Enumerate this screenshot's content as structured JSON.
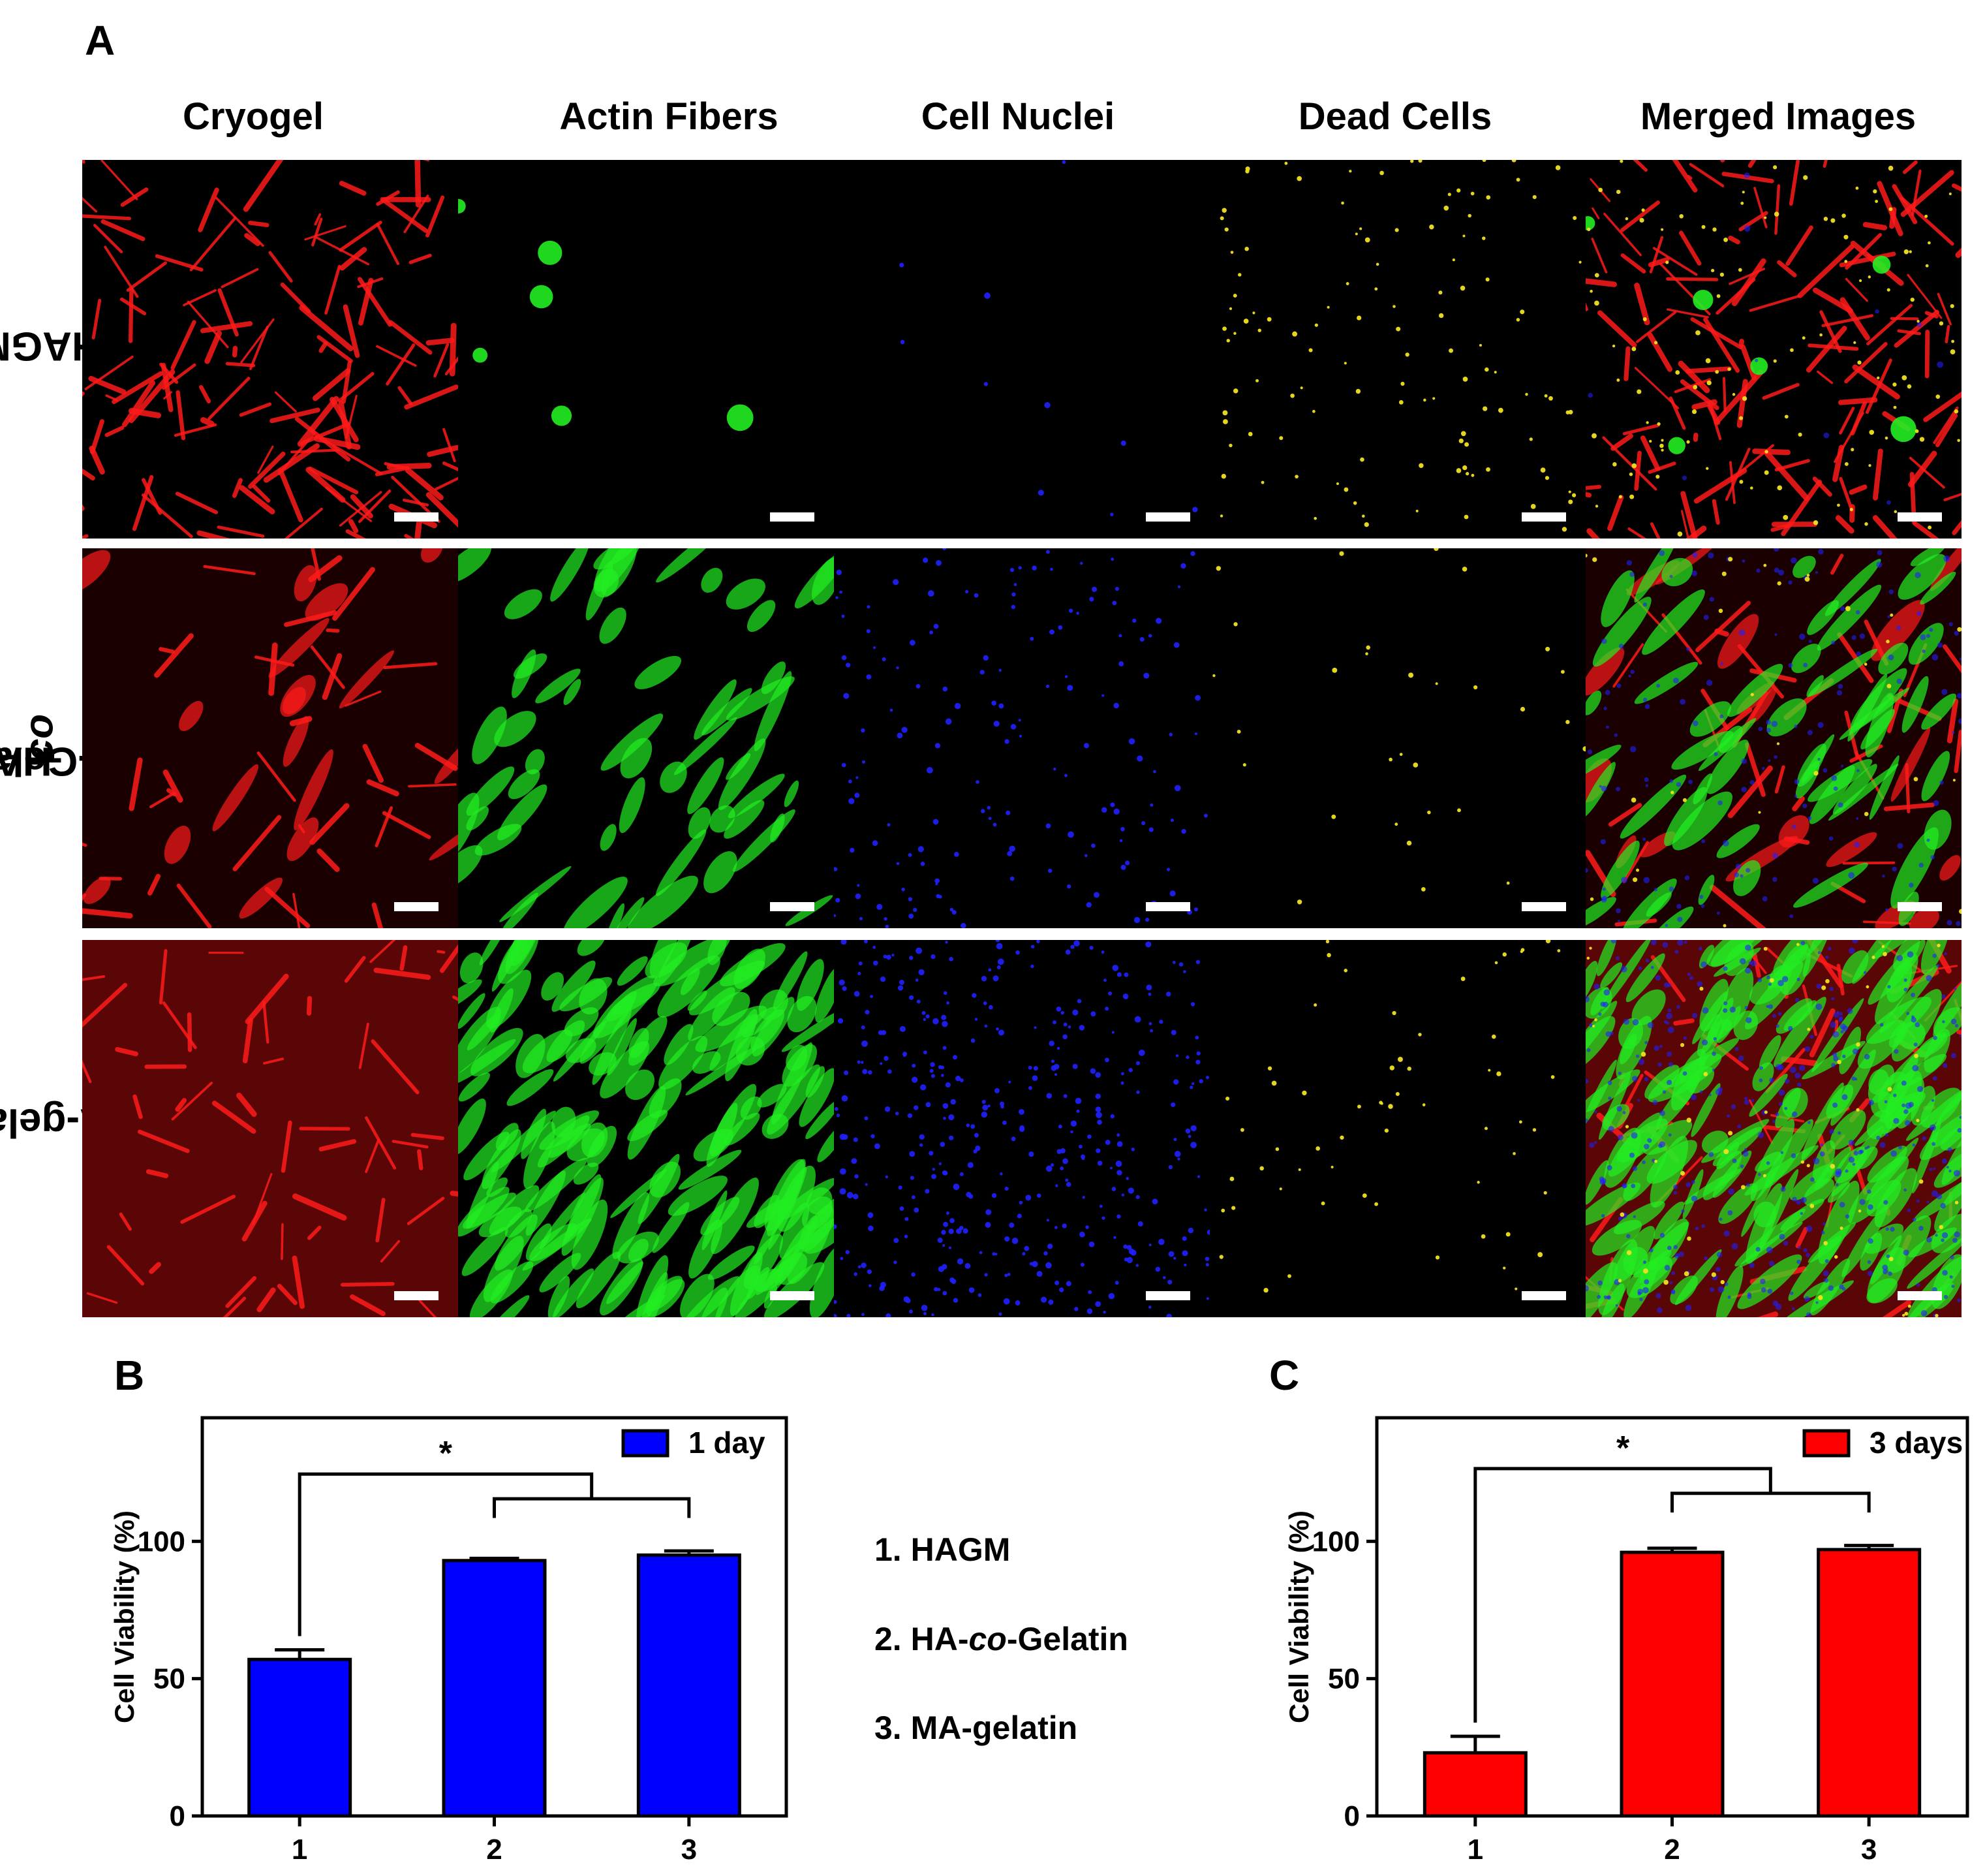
{
  "panels": {
    "a": "A",
    "b": "B",
    "c": "C"
  },
  "columns": [
    "Cryogel",
    "Actin Fibers",
    "Cell Nuclei",
    "Dead Cells",
    "Merged Images"
  ],
  "rows": [
    {
      "pre": "HAGM",
      "ital": "",
      "post": ""
    },
    {
      "pre": "HA-",
      "ital": "co",
      "post": "-Gelatin"
    },
    {
      "pre": "MA-gelatin",
      "ital": "",
      "post": ""
    }
  ],
  "colors": {
    "red": "#ff1a1a",
    "green": "#22ee22",
    "blue": "#2020ff",
    "yellow": "#f0e020",
    "bar_blue": "#0000ff",
    "bar_red": "#ff0000"
  },
  "key": [
    {
      "num": "1.",
      "pre": "HAGM",
      "ital": "",
      "post": ""
    },
    {
      "num": "2.",
      "pre": "HA-",
      "ital": "co",
      "post": "-Gelatin"
    },
    {
      "num": "3.",
      "pre": "MA-gelatin",
      "ital": "",
      "post": ""
    }
  ],
  "chart_data": [
    {
      "type": "bar",
      "panel": "B",
      "categories": [
        "1",
        "2",
        "3"
      ],
      "series": [
        {
          "name": "1 day",
          "values": [
            57,
            93,
            95
          ],
          "errors": [
            3.5,
            0.8,
            1.5
          ]
        }
      ],
      "ylabel": "Cell Viability (%)",
      "xlabel": "",
      "ylim": [
        0,
        145
      ],
      "yticks": [
        0,
        50,
        100
      ],
      "significance": "*",
      "legend": "top-right",
      "color": "#0000ff"
    },
    {
      "type": "bar",
      "panel": "C",
      "categories": [
        "1",
        "2",
        "3"
      ],
      "series": [
        {
          "name": "3 days",
          "values": [
            23,
            96,
            97
          ],
          "errors": [
            6,
            1.5,
            1.5
          ]
        }
      ],
      "ylabel": "Cell Viability (%)",
      "xlabel": "",
      "ylim": [
        0,
        145
      ],
      "yticks": [
        0,
        50,
        100
      ],
      "significance": "*",
      "legend": "top-right",
      "color": "#ff0000"
    }
  ]
}
